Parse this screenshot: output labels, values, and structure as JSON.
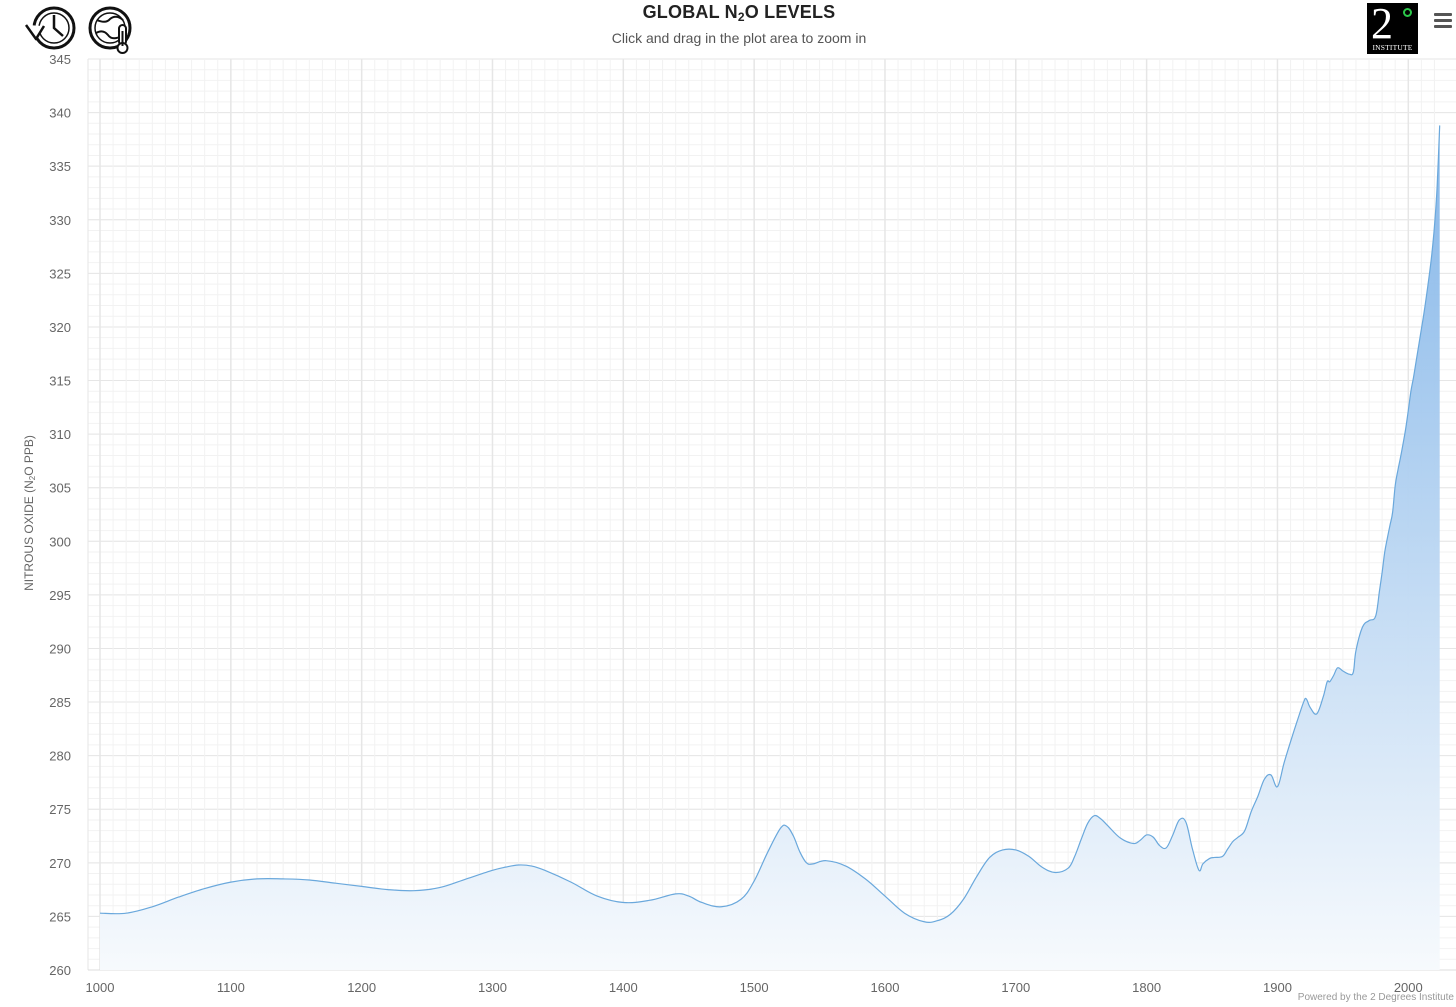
{
  "header": {
    "title_pre": "GLOBAL N",
    "title_sub": "2",
    "title_post": "O LEVELS",
    "subtitle": "Click and drag in the plot area to zoom in"
  },
  "toolbar": {
    "reset_icon": "history-reset-icon",
    "globe_icon": "globe-thermometer-icon",
    "menu_icon": "hamburger-menu-icon"
  },
  "brand": {
    "digit": "2",
    "word": "INSTITUTE"
  },
  "credits": "Powered by the 2 Degrees Institute",
  "colors": {
    "line": "#6aa8dc",
    "area_top": "#7fb3e8",
    "area_bottom": "#f7fafd",
    "grid": "#e6e6e6",
    "minor_grid": "#f2f2f2"
  },
  "chart_data": {
    "type": "area",
    "title": "GLOBAL N2O LEVELS",
    "subtitle": "Click and drag in the plot area to zoom in",
    "xlabel": "",
    "ylabel_pre": "NITROUS OXIDE (N",
    "ylabel_sub": "2",
    "ylabel_post": "O PPB)",
    "xlim": [
      1000,
      2025
    ],
    "ylim": [
      260,
      345
    ],
    "x_ticks": [
      1000,
      1100,
      1200,
      1300,
      1400,
      1500,
      1600,
      1700,
      1800,
      1900,
      2000
    ],
    "y_ticks": [
      260,
      265,
      270,
      275,
      280,
      285,
      290,
      295,
      300,
      305,
      310,
      315,
      320,
      325,
      330,
      335,
      340,
      345
    ],
    "grid": true,
    "legend": "none",
    "series": [
      {
        "x": [
          1000,
          1020,
          1040,
          1060,
          1080,
          1100,
          1120,
          1140,
          1160,
          1180,
          1200,
          1220,
          1240,
          1260,
          1280,
          1300,
          1310,
          1320,
          1330,
          1340,
          1360,
          1380,
          1400,
          1420,
          1440,
          1450,
          1460,
          1475,
          1490,
          1500,
          1510,
          1520,
          1525,
          1530,
          1535,
          1540,
          1545,
          1555,
          1570,
          1585,
          1600,
          1615,
          1630,
          1640,
          1650,
          1660,
          1670,
          1680,
          1690,
          1700,
          1710,
          1720,
          1730,
          1740,
          1745,
          1750,
          1755,
          1760,
          1765,
          1770,
          1780,
          1790,
          1795,
          1800,
          1805,
          1810,
          1815,
          1820,
          1825,
          1830,
          1835,
          1840,
          1843,
          1848,
          1852,
          1858,
          1862,
          1866,
          1870,
          1875,
          1880,
          1885,
          1890,
          1895,
          1900,
          1905,
          1910,
          1915,
          1920,
          1922,
          1925,
          1930,
          1935,
          1938,
          1940,
          1943,
          1946,
          1950,
          1955,
          1958,
          1960,
          1965,
          1970,
          1975,
          1978,
          1980,
          1982,
          1984,
          1986,
          1988,
          1990,
          1992,
          1994,
          1996,
          1998,
          2000,
          2002,
          2004,
          2006,
          2008,
          2010,
          2012,
          2014,
          2016,
          2018,
          2020,
          2022,
          2024
        ],
        "values": [
          265.3,
          265.3,
          265.9,
          266.8,
          267.6,
          268.2,
          268.5,
          268.5,
          268.4,
          268.1,
          267.8,
          267.5,
          267.4,
          267.7,
          268.5,
          269.3,
          269.6,
          269.8,
          269.7,
          269.3,
          268.2,
          266.9,
          266.3,
          266.5,
          267.1,
          266.9,
          266.3,
          265.9,
          266.6,
          268.3,
          270.9,
          273.2,
          273.4,
          272.5,
          271.0,
          270.0,
          269.9,
          270.2,
          269.7,
          268.5,
          266.9,
          265.3,
          264.5,
          264.6,
          265.2,
          266.6,
          268.7,
          270.5,
          271.2,
          271.2,
          270.6,
          269.6,
          269.1,
          269.5,
          270.6,
          272.2,
          273.7,
          274.4,
          274.1,
          273.5,
          272.3,
          271.8,
          272.1,
          272.6,
          272.4,
          271.6,
          271.4,
          272.6,
          274.0,
          273.8,
          271.3,
          269.3,
          269.9,
          270.4,
          270.5,
          270.6,
          271.3,
          272.0,
          272.4,
          273.0,
          274.8,
          276.2,
          277.8,
          278.2,
          277.1,
          279.3,
          281.3,
          283.2,
          285.0,
          285.3,
          284.5,
          283.9,
          285.5,
          286.9,
          286.9,
          287.5,
          288.2,
          287.9,
          287.6,
          287.8,
          289.8,
          292.0,
          292.6,
          293.0,
          295.4,
          297.1,
          299.0,
          300.3,
          301.5,
          302.7,
          305.2,
          306.6,
          307.8,
          309.1,
          310.5,
          312.2,
          314.0,
          315.3,
          316.8,
          318.3,
          319.8,
          321.3,
          323.0,
          324.8,
          326.8,
          329.4,
          333.0,
          338.8
        ]
      }
    ]
  }
}
